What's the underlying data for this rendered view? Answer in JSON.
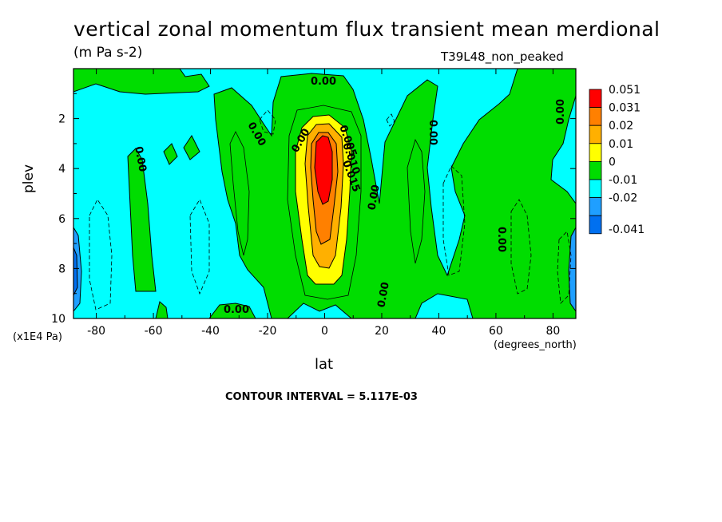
{
  "title": "vertical zonal momentum flux transient mean merdional",
  "units": "(m Pa s-2)",
  "experiment": "T39L48_non_peaked",
  "ylabel": "plev",
  "yunits": "(x1E4 Pa)",
  "xlabel": "lat",
  "xunits": "(degrees_north)",
  "contour_interval": "CONTOUR INTERVAL = 5.117E-03",
  "colors": {
    "c1": "#0070f0",
    "c2": "#1f9fff",
    "c3": "#00ffff",
    "c4": "#00dd00",
    "c5": "#ffff00",
    "c6": "#ffb000",
    "c7": "#ff8000",
    "c8": "#ff0000"
  },
  "chart_data": {
    "type": "contour",
    "title": "vertical zonal momentum flux transient mean merdional",
    "xlabel": "lat",
    "ylabel": "plev",
    "xlim": [
      -88,
      88
    ],
    "ylim": [
      10,
      0
    ],
    "x_ticks": [
      -80,
      -60,
      -40,
      -20,
      0,
      20,
      40,
      60,
      80
    ],
    "x_tick_labels": [
      "-80",
      "-60",
      "-40",
      "-20",
      "0",
      "20",
      "40",
      "60",
      "80"
    ],
    "y_ticks": [
      2,
      4,
      6,
      8,
      10
    ],
    "y_tick_labels": [
      "2",
      "4",
      "6",
      "8",
      "10"
    ],
    "legend_levels": [
      "0.051",
      "0.031",
      "0.02",
      "0.01",
      "0",
      "-0.01",
      "-0.02",
      "-0.041"
    ],
    "contour_labels": [
      "0.00",
      "0.00",
      "0.00",
      "0.00",
      "0.00",
      "0.00",
      "0.00",
      "0.00",
      "0.00",
      "0.00",
      "0.005",
      "0.010",
      "0.015"
    ],
    "contour_interval": 0.005117
  }
}
